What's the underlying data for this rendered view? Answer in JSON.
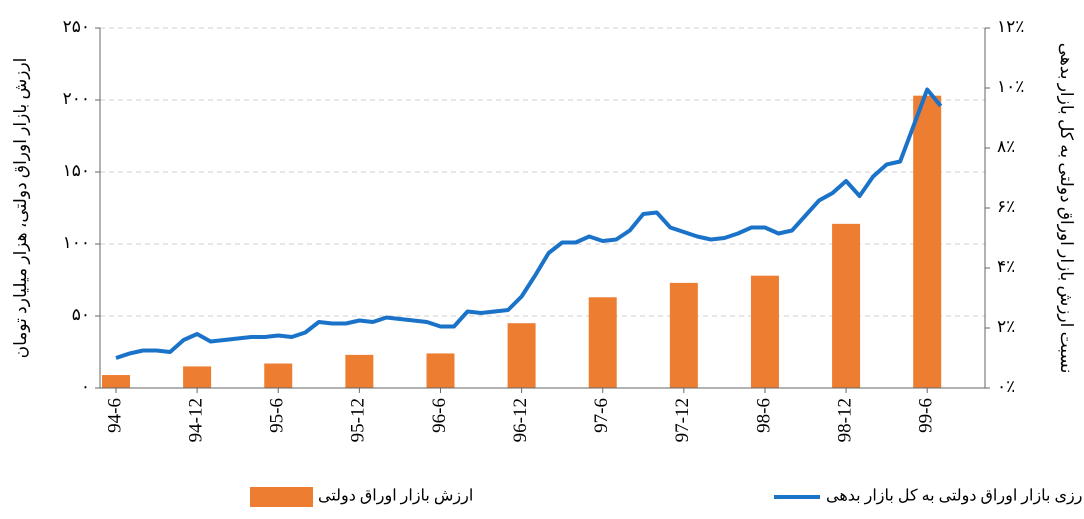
{
  "chart_data": {
    "type": "bar-line",
    "y_label": "ارزش بازار اوراق دولتی، هزار میلیارد تومان",
    "y2_label": "نسبت ارزش بازار اوراق دولتی به کل بازار بدهی",
    "categories": [
      "94-6",
      null,
      null,
      null,
      null,
      null,
      "94-12",
      null,
      null,
      null,
      null,
      null,
      "95-6",
      null,
      null,
      null,
      null,
      null,
      "95-12",
      null,
      null,
      null,
      null,
      null,
      "96-6",
      null,
      null,
      null,
      null,
      null,
      "96-12",
      null,
      null,
      null,
      null,
      null,
      "97-6",
      null,
      null,
      null,
      null,
      null,
      "97-12",
      null,
      null,
      null,
      null,
      null,
      "98-6",
      null,
      null,
      null,
      null,
      null,
      "98-12",
      null,
      null,
      null,
      null,
      null,
      "99-6",
      null
    ],
    "series": [
      {
        "name": "ارزش بازار اوراق دولتی",
        "type": "bar",
        "color": "#ed7d31",
        "values": [
          9,
          null,
          null,
          null,
          null,
          null,
          15,
          null,
          null,
          null,
          null,
          null,
          17,
          null,
          null,
          null,
          null,
          null,
          23,
          null,
          null,
          null,
          null,
          null,
          24,
          null,
          null,
          null,
          null,
          null,
          45,
          null,
          null,
          null,
          null,
          null,
          63,
          null,
          null,
          null,
          null,
          null,
          73,
          null,
          null,
          null,
          null,
          null,
          78,
          null,
          null,
          null,
          null,
          null,
          114,
          null,
          null,
          null,
          null,
          null,
          203,
          null
        ]
      },
      {
        "name": "نسبت ارزی بازار اوراق دولتی به کل بازار بدهی",
        "type": "line",
        "axis": "y2",
        "color": "#1a73c8",
        "values": [
          1.0,
          1.15,
          1.25,
          1.25,
          1.2,
          1.6,
          1.8,
          1.55,
          1.6,
          1.65,
          1.7,
          1.7,
          1.75,
          1.7,
          1.85,
          2.2,
          2.15,
          2.15,
          2.25,
          2.2,
          2.35,
          2.3,
          2.25,
          2.2,
          2.05,
          2.05,
          2.55,
          2.5,
          2.55,
          2.6,
          3.05,
          3.75,
          4.5,
          4.85,
          4.85,
          5.05,
          4.9,
          4.95,
          5.25,
          5.8,
          5.85,
          5.35,
          5.2,
          5.05,
          4.95,
          5.0,
          5.15,
          5.35,
          5.35,
          5.15,
          5.25,
          5.75,
          6.25,
          6.5,
          6.9,
          6.4,
          7.05,
          7.45,
          7.55,
          8.75,
          9.95,
          9.4
        ]
      }
    ],
    "ylim": [
      0,
      250
    ],
    "yticks": [
      {
        "value": 0,
        "label": "۰"
      },
      {
        "value": 50,
        "label": "۵۰"
      },
      {
        "value": 100,
        "label": "۱۰۰"
      },
      {
        "value": 150,
        "label": "۱۵۰"
      },
      {
        "value": 200,
        "label": "۲۰۰"
      },
      {
        "value": 250,
        "label": "۲۵۰"
      }
    ],
    "y2lim": [
      0,
      12
    ],
    "y2ticks": [
      {
        "value": 0,
        "label": "۰٪"
      },
      {
        "value": 2,
        "label": "۲٪"
      },
      {
        "value": 4,
        "label": "۴٪"
      },
      {
        "value": 6,
        "label": "۶٪"
      },
      {
        "value": 8,
        "label": "۸٪"
      },
      {
        "value": 10,
        "label": "۱۰٪"
      },
      {
        "value": 12,
        "label": "۱۲٪"
      }
    ],
    "grid": true,
    "legend": "bottom"
  }
}
